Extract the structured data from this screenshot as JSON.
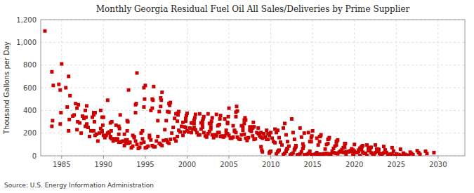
{
  "chart_data": {
    "type": "scatter",
    "title": "Monthly Georgia Residual Fuel Oil All Sales/Deliveries by Prime Supplier",
    "ylabel": "Thousand Gallons per Day",
    "annotations": [
      "Source: U.S. Energy Information Administration"
    ],
    "color": "#CC0000",
    "marker": "square",
    "grid": true,
    "xlim": [
      1982.5,
      2033.2
    ],
    "xticks": [
      1985,
      1990,
      1995,
      2000,
      2005,
      2010,
      2015,
      2020,
      2025,
      2030
    ],
    "ylim": [
      0,
      1200
    ],
    "yticks": [
      0,
      200,
      400,
      600,
      800,
      {
        "value": 1000,
        "label": "1,000"
      },
      {
        "value": 1200,
        "label": "1,200"
      }
    ],
    "x": [
      1983,
      1983.8333333333,
      1984.6666666667,
      1985.5,
      1986.3333333333,
      1987.1666666667,
      1988,
      1988.8333333333,
      1989.6666666667,
      1990.5,
      1983.8333333333,
      1983.9166666667,
      1984,
      1984.8333333333,
      1985.6666666667,
      1986.5,
      1987.3333333333,
      1988.1666666667,
      1989,
      1989.8333333333,
      1990.6666666667,
      1991.5,
      1984.8333333333,
      1984.9166666667,
      1985,
      1985.8333333333,
      1986.6666666667,
      1987.5,
      1988.3333333333,
      1989.1666666667,
      1990,
      1990.8333333333,
      1991.6666666667,
      1992.5,
      1985.8333333333,
      1985.9166666667,
      1986,
      1986.8333333333,
      1987.6666666667,
      1988.5,
      1989.3333333333,
      1990.1666666667,
      1991,
      1991.8333333333,
      1992.6666666667,
      1993.5,
      1986.8333333333,
      1986.9166666667,
      1987,
      1987.8333333333,
      1988.6666666667,
      1989.5,
      1990.3333333333,
      1991.1666666667,
      1992,
      1992.8333333333,
      1993.6666666667,
      1994.5,
      1987.8333333333,
      1987.9166666667,
      1988,
      1988.8333333333,
      1989.6666666667,
      1990.5,
      1991.3333333333,
      1992.1666666667,
      1993,
      1993.8333333333,
      1994.6666666667,
      1995.5,
      1988.8333333333,
      1988.9166666667,
      1989,
      1989.8333333333,
      1990.6666666667,
      1991.5,
      1992.3333333333,
      1993.1666666667,
      1994,
      1994.8333333333,
      1995.6666666667,
      1996.5,
      1989.8333333333,
      1989.9166666667,
      1990,
      1990.8333333333,
      1991.6666666667,
      1992.5,
      1993.3333333333,
      1994.1666666667,
      1995,
      1995.8333333333,
      1996.6666666667,
      1997.5,
      1990.8333333333,
      1990.9166666667,
      1991,
      1991.8333333333,
      1992.6666666667,
      1993.5,
      1994.3333333333,
      1995.1666666667,
      1996,
      1996.8333333333,
      1997.6666666667,
      1998.5,
      1991.8333333333,
      1991.9166666667,
      1992,
      1992.8333333333,
      1993.6666666667,
      1994.5,
      1995.3333333333,
      1996.1666666667,
      1997,
      1997.8333333333,
      1998.6666666667,
      1999.5,
      1992.8333333333,
      1992.9166666667,
      1993,
      1993.8333333333,
      1994.6666666667,
      1995.5,
      1996.3333333333,
      1997.1666666667,
      1998,
      1998.8333333333,
      1999.6666666667,
      2000.5,
      1993.8333333333,
      1993.9166666667,
      1994,
      1994.8333333333,
      1995.6666666667,
      1996.5,
      1997.3333333333,
      1998.1666666667,
      1999,
      1999.8333333333,
      2000.6666666667,
      2001.5,
      1994.8333333333,
      1994.9166666667,
      1995,
      1995.8333333333,
      1996.6666666667,
      1997.5,
      1998.3333333333,
      1999.1666666667,
      2000,
      2000.8333333333,
      2001.6666666667,
      2002.5,
      1995.8333333333,
      1995.9166666667,
      1996,
      1996.8333333333,
      1997.6666666667,
      1998.5,
      1999.3333333333,
      2000.1666666667,
      2001,
      2001.8333333333,
      2002.6666666667,
      2003.5,
      1996.8333333333,
      1996.9166666667,
      1997,
      1997.8333333333,
      1998.6666666667,
      1999.5,
      2000.3333333333,
      2001.1666666667,
      2002,
      2002.8333333333,
      2003.6666666667,
      2004.5,
      1997.8333333333,
      1997.9166666667,
      1998,
      1998.8333333333,
      1999.6666666667,
      2000.5,
      2001.3333333333,
      2002.1666666667,
      2003,
      2003.8333333333,
      2004.6666666667,
      2005.5,
      1998.8333333333,
      1998.9166666667,
      1999,
      1999.8333333333,
      2000.6666666667,
      2001.5,
      2002.3333333333,
      2003.1666666667,
      2004,
      2004.8333333333,
      2005.6666666667,
      2006.5,
      1999.8333333333,
      1999.9166666667,
      2000,
      2000.8333333333,
      2001.6666666667,
      2002.5,
      2003.3333333333,
      2004.1666666667,
      2005,
      2005.8333333333,
      2006.6666666667,
      2007.5,
      2000.8333333333,
      2000.9166666667,
      2001,
      2001.8333333333,
      2002.6666666667,
      2003.5,
      2004.3333333333,
      2005.1666666667,
      2006,
      2006.8333333333,
      2007.6666666667,
      2008.5,
      2001.8333333333,
      2001.9166666667,
      2002,
      2002.8333333333,
      2003.6666666667,
      2004.5,
      2005.3333333333,
      2006.1666666667,
      2007,
      2007.8333333333,
      2008.6666666667,
      2009.5,
      2002.8333333333,
      2002.9166666667,
      2003,
      2003.8333333333,
      2004.6666666667,
      2005.5,
      2006.3333333333,
      2007.1666666667,
      2008,
      2008.8333333333,
      2009.6666666667,
      2010.5,
      2003.8333333333,
      2003.9166666667,
      2004,
      2004.8333333333,
      2005.6666666667,
      2006.5,
      2007.3333333333,
      2008.1666666667,
      2009,
      2009.8333333333,
      2010.6666666667,
      2011.5,
      2004.8333333333,
      2004.9166666667,
      2005,
      2005.8333333333,
      2006.6666666667,
      2007.5,
      2008.3333333333,
      2009.1666666667,
      2010,
      2010.8333333333,
      2011.6666666667,
      2012.5,
      2005.8333333333,
      2005.9166666667,
      2006,
      2006.8333333333,
      2007.6666666667,
      2008.5,
      2009.3333333333,
      2010.1666666667,
      2011,
      2011.8333333333,
      2012.6666666667,
      2013.5,
      2006.8333333333,
      2006.9166666667,
      2007,
      2007.8333333333,
      2008.6666666667,
      2009.5,
      2010.3333333333,
      2011.1666666667,
      2012,
      2012.8333333333,
      2013.6666666667,
      2014.5,
      2007.8333333333,
      2007.9166666667,
      2008,
      2008.8333333333,
      2009.6666666667,
      2010.5,
      2011.3333333333,
      2012.1666666667,
      2013,
      2013.8333333333,
      2014.6666666667,
      2015.5,
      2008.8333333333,
      2008.9166666667,
      2009,
      2009.8333333333,
      2010.6666666667,
      2011.5,
      2012.3333333333,
      2013.1666666667,
      2014,
      2014.8333333333,
      2015.6666666667,
      2016.5,
      2009.8333333333,
      2009.9166666667,
      2010,
      2010.8333333333,
      2011.6666666667,
      2012.5,
      2013.3333333333,
      2014.1666666667,
      2015,
      2015.8333333333,
      2016.6666666667,
      2017.5,
      2010.8333333333,
      2010.9166666667,
      2011,
      2011.8333333333,
      2012.6666666667,
      2013.5,
      2014.3333333333,
      2015.1666666667,
      2016,
      2016.8333333333,
      2017.6666666667,
      2018.5,
      2011.8333333333,
      2011.9166666667,
      2012,
      2012.8333333333,
      2013.6666666667,
      2014.5,
      2015.3333333333,
      2016.1666666667,
      2017,
      2017.8333333333,
      2018.6666666667,
      2019.5,
      2012.8333333333,
      2012.9166666667,
      2013,
      2013.8333333333,
      2014.6666666667,
      2015.5,
      2016.3333333333,
      2017.1666666667,
      2018,
      2018.8333333333,
      2019.6666666667,
      2020.5,
      2013.8333333333,
      2013.9166666667,
      2014,
      2014.8333333333,
      2015.6666666667,
      2016.5,
      2017.3333333333,
      2018.1666666667,
      2019,
      2019.8333333333,
      2020.6666666667,
      2021.5,
      2014.8333333333,
      2014.9166666667,
      2015,
      2015.8333333333,
      2016.6666666667,
      2017.5,
      2018.3333333333,
      2019.1666666667,
      2020,
      2020.8333333333,
      2021.6666666667,
      2022.5,
      2015.8333333333,
      2015.9166666667,
      2016,
      2016.8333333333,
      2017.6666666667,
      2018.5,
      2019.3333333333,
      2020.1666666667,
      2021,
      2021.8333333333,
      2022.6666666667,
      2023.5,
      2016.8333333333,
      2016.9166666667,
      2017,
      2017.8333333333,
      2018.6666666667,
      2019.5,
      2020.3333333333,
      2021.1666666667,
      2022,
      2022.8333333333,
      2023.6666666667,
      2024.5,
      2017.8333333333,
      2017.9166666667,
      2018,
      2018.8333333333,
      2019.6666666667,
      2020.5,
      2021.3333333333,
      2022.1666666667,
      2023,
      2023.8333333333,
      2024.6666666667,
      2025.5,
      2018.8333333333,
      2018.9166666667,
      2019,
      2019.8333333333,
      2020.6666666667,
      2021.5,
      2022.3333333333,
      2023.1666666667,
      2024,
      2024.8333333333,
      2025.6666666667,
      2026.5,
      2019.8333333333,
      2019.9166666667,
      2020,
      2020.8333333333,
      2021.6666666667,
      2022.5,
      2023.3333333333,
      2024.1666666667,
      2025,
      2025.8333333333,
      2026.6666666667,
      2027.5,
      2020.8333333333,
      2020.9166666667,
      2021,
      2021.8333333333,
      2022.6666666667,
      2023.5,
      2024.3333333333,
      2025.1666666667,
      2026,
      2026.8333333333,
      2027.6666666667,
      2028.5,
      2021.8333333333,
      2021.9166666667,
      2022,
      2022.8333333333,
      2023.6666666667,
      2024.5,
      2025.3333333333,
      2026.1666666667,
      2027,
      2027.8333333333,
      2028.6666666667,
      2029.5,
      2022.8333333333,
      2022.9166666667
    ],
    "values": [
      1100,
      740,
      630,
      600,
      350,
      290,
      280,
      380,
      400,
      490,
      260,
      310,
      620,
      580,
      430,
      360,
      200,
      250,
      180,
      220,
      200,
      270,
      280,
      380,
      810,
      700,
      460,
      350,
      170,
      190,
      180,
      160,
      150,
      190,
      220,
      320,
      530,
      420,
      330,
      220,
      130,
      160,
      150,
      120,
      140,
      180,
      230,
      300,
      450,
      400,
      340,
      200,
      180,
      130,
      120,
      140,
      160,
      200,
      260,
      340,
      440,
      360,
      240,
      200,
      150,
      125,
      110,
      130,
      150,
      180,
      220,
      300,
      380,
      340,
      210,
      140,
      130,
      120,
      100,
      120,
      140,
      170,
      210,
      270,
      340,
      290,
      140,
      90,
      70,
      65,
      70,
      90,
      110,
      140,
      170,
      220,
      300,
      260,
      110,
      85,
      75,
      75,
      80,
      100,
      120,
      150,
      190,
      240,
      360,
      310,
      170,
      110,
      85,
      80,
      90,
      110,
      130,
      180,
      220,
      300,
      580,
      450,
      220,
      160,
      130,
      135,
      145,
      170,
      210,
      290,
      380,
      460,
      730,
      600,
      400,
      310,
      230,
      200,
      225,
      250,
      290,
      370,
      430,
      500,
      620,
      500,
      390,
      310,
      250,
      210,
      220,
      250,
      290,
      370,
      420,
      490,
      610,
      510,
      390,
      330,
      260,
      210,
      230,
      250,
      285,
      365,
      435,
      490,
      560,
      460,
      370,
      295,
      245,
      205,
      205,
      235,
      265,
      325,
      385,
      445,
      470,
      375,
      255,
      205,
      185,
      175,
      185,
      205,
      225,
      265,
      305,
      360,
      390,
      330,
      235,
      185,
      165,
      160,
      170,
      195,
      225,
      265,
      305,
      355,
      375,
      315,
      235,
      195,
      185,
      175,
      180,
      205,
      225,
      255,
      285,
      335,
      365,
      305,
      215,
      175,
      165,
      155,
      165,
      190,
      215,
      245,
      275,
      325,
      345,
      285,
      205,
      175,
      155,
      150,
      155,
      175,
      195,
      225,
      255,
      305,
      335,
      275,
      195,
      165,
      145,
      135,
      145,
      165,
      195,
      235,
      275,
      325,
      355,
      295,
      215,
      185,
      160,
      150,
      155,
      180,
      205,
      245,
      285,
      345,
      420,
      345,
      255,
      225,
      205,
      195,
      205,
      225,
      285,
      325,
      385,
      435,
      395,
      315,
      225,
      195,
      165,
      155,
      160,
      185,
      205,
      245,
      285,
      335,
      315,
      255,
      175,
      145,
      125,
      120,
      125,
      145,
      165,
      205,
      245,
      295,
      255,
      205,
      145,
      115,
      95,
      85,
      90,
      105,
      125,
      155,
      80,
      50,
      35,
      25,
      18,
      12,
      8,
      8,
      8,
      10,
      12,
      18,
      25,
      35,
      40,
      35,
      22,
      15,
      10,
      8,
      10,
      15,
      20,
      28,
      35,
      45,
      50,
      40,
      25,
      18,
      12,
      10,
      12,
      18,
      25,
      35,
      45,
      60,
      65,
      55,
      35,
      22,
      15,
      12,
      15,
      22,
      30,
      40,
      55,
      70,
      80,
      65,
      40,
      28,
      18,
      15,
      18,
      28,
      38,
      50,
      65,
      85,
      200,
      160,
      95,
      60,
      40,
      32,
      38,
      52,
      68,
      95,
      125,
      175,
      220,
      170,
      100,
      65,
      42,
      35,
      40,
      55,
      70,
      95,
      125,
      170,
      185,
      145,
      85,
      55,
      35,
      28,
      32,
      45,
      60,
      82,
      108,
      148,
      160,
      125,
      72,
      45,
      28,
      22,
      26,
      38,
      52,
      72,
      95,
      130,
      140,
      108,
      62,
      38,
      22,
      18,
      20,
      30,
      42,
      58,
      78,
      108,
      5,
      4,
      2,
      2,
      1,
      1,
      1,
      2,
      2,
      4,
      6,
      9,
      100,
      78,
      45,
      28,
      18,
      14,
      16,
      24,
      32,
      45,
      60,
      82,
      90,
      70,
      40,
      25,
      15,
      12,
      14,
      20,
      28,
      40,
      52,
      72,
      75,
      58,
      32,
      18,
      10,
      8,
      10,
      14,
      20,
      28,
      38,
      55
    ]
  }
}
